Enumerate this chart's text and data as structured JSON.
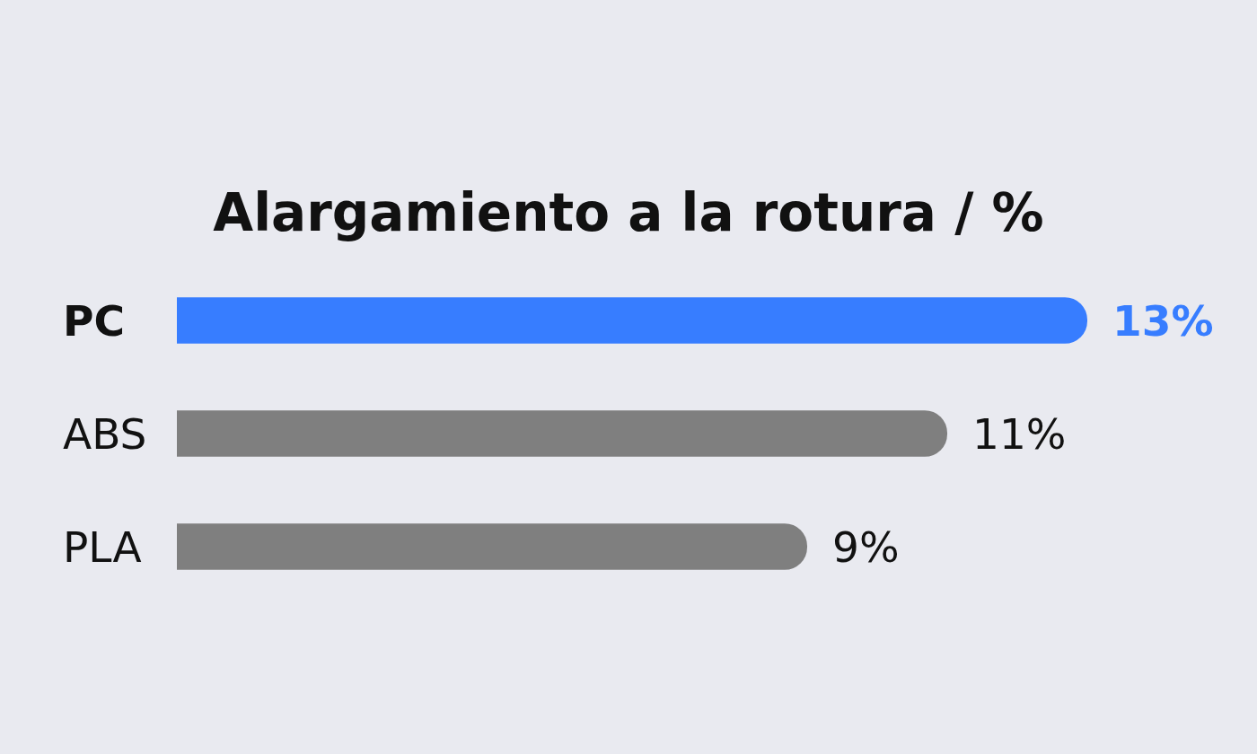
{
  "chart_data": {
    "type": "bar",
    "orientation": "horizontal",
    "title": "Alargamiento a la rotura / %",
    "categories": [
      "PC",
      "ABS",
      "PLA"
    ],
    "values": [
      13,
      11,
      9
    ],
    "colors": [
      "#377dff",
      "#7f7f7f",
      "#7f7f7f"
    ],
    "value_labels": [
      "13%",
      "11%",
      "9%"
    ],
    "tick_labels": "y"
  }
}
